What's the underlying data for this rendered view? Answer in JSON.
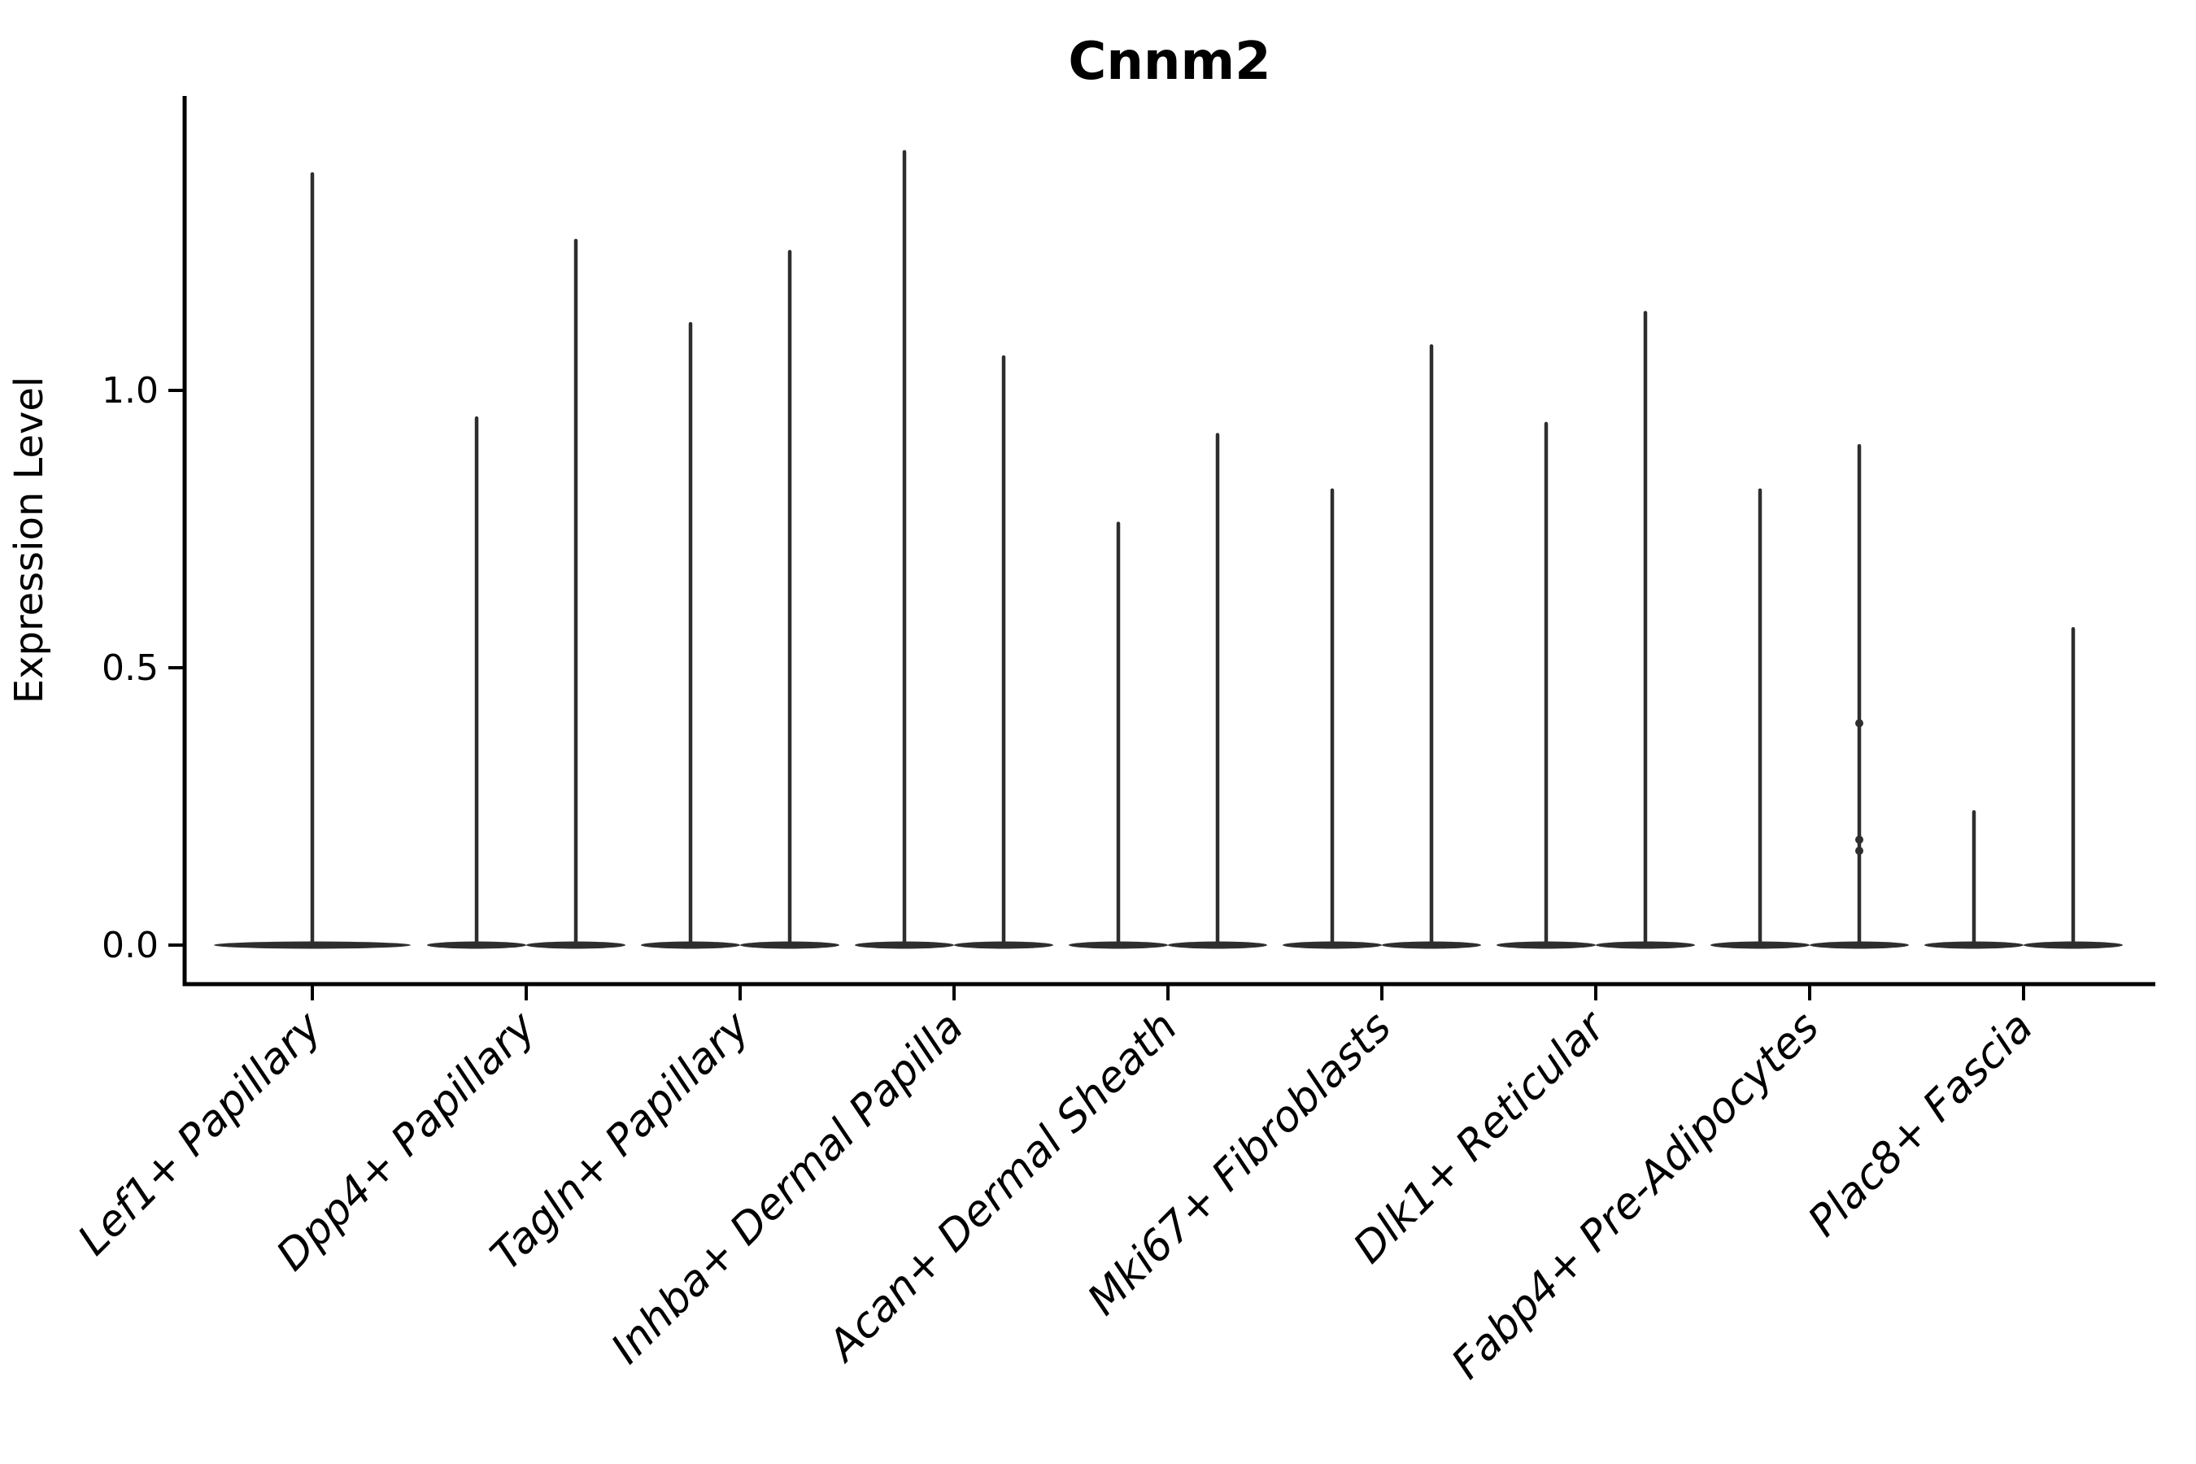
{
  "title": "Cnnm2",
  "colors": {
    "violin": "#2e2e2e",
    "axis": "#000000",
    "text": "#000000",
    "background": "#ffffff"
  },
  "chart_data": {
    "type": "violin",
    "title": "Cnnm2",
    "xlabel": "",
    "ylabel": "Expression Level",
    "ylim": [
      -0.07,
      1.53
    ],
    "grid": false,
    "legend": null,
    "yticks": {
      "values": [
        0.0,
        0.5,
        1.0
      ],
      "labels": [
        "0.0",
        "0.5",
        "1.0"
      ]
    },
    "categories": [
      "Lef1+ Papillary",
      "Dpp4+ Papillary",
      "Tagln+ Papillary",
      "Inhba+ Dermal Papilla",
      "Acan+ Dermal Sheath",
      "Mki67+ Fibroblasts",
      "Dlk1+ Reticular",
      "Fabp4+ Pre-Adipocytes",
      "Plac8+ Fascia"
    ],
    "baseline_value": 0.0,
    "violins": [
      {
        "category": "Lef1+ Papillary",
        "category_index": 0,
        "position": "center",
        "max": 1.39
      },
      {
        "category": "Dpp4+ Papillary",
        "category_index": 1,
        "position": "left",
        "max": 0.95
      },
      {
        "category": "Dpp4+ Papillary",
        "category_index": 1,
        "position": "right",
        "max": 1.27
      },
      {
        "category": "Tagln+ Papillary",
        "category_index": 2,
        "position": "left",
        "max": 1.12
      },
      {
        "category": "Tagln+ Papillary",
        "category_index": 2,
        "position": "right",
        "max": 1.25
      },
      {
        "category": "Inhba+ Dermal Papilla",
        "category_index": 3,
        "position": "left",
        "max": 1.43
      },
      {
        "category": "Inhba+ Dermal Papilla",
        "category_index": 3,
        "position": "right",
        "max": 1.06
      },
      {
        "category": "Acan+ Dermal Sheath",
        "category_index": 4,
        "position": "left",
        "max": 0.76
      },
      {
        "category": "Acan+ Dermal Sheath",
        "category_index": 4,
        "position": "right",
        "max": 0.92
      },
      {
        "category": "Mki67+ Fibroblasts",
        "category_index": 5,
        "position": "left",
        "max": 0.82
      },
      {
        "category": "Mki67+ Fibroblasts",
        "category_index": 5,
        "position": "right",
        "max": 1.08
      },
      {
        "category": "Dlk1+ Reticular",
        "category_index": 6,
        "position": "left",
        "max": 0.94
      },
      {
        "category": "Dlk1+ Reticular",
        "category_index": 6,
        "position": "right",
        "max": 1.14
      },
      {
        "category": "Fabp4+ Pre-Adipocytes",
        "category_index": 7,
        "position": "left",
        "max": 0.82
      },
      {
        "category": "Fabp4+ Pre-Adipocytes",
        "category_index": 7,
        "position": "right",
        "max": 0.9,
        "point_values": [
          0.4,
          0.19,
          0.17
        ]
      },
      {
        "category": "Plac8+ Fascia",
        "category_index": 8,
        "position": "left",
        "max": 0.24
      },
      {
        "category": "Plac8+ Fascia",
        "category_index": 8,
        "position": "right",
        "max": 0.57
      }
    ]
  }
}
